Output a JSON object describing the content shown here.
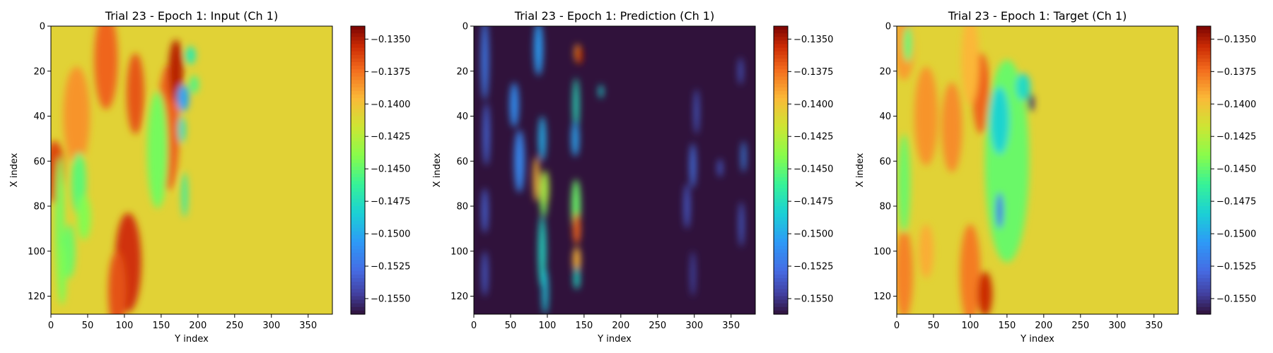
{
  "chart_data": [
    {
      "type": "heatmap",
      "title": "Trial 23 - Epoch 1: Input (Ch 1)",
      "xlabel": "Y index",
      "ylabel": "X index",
      "xlim": [
        0,
        383
      ],
      "ylim": [
        128,
        0
      ],
      "xticks": [
        "0",
        "50",
        "100",
        "150",
        "200",
        "250",
        "300",
        "350"
      ],
      "yticks": [
        "0",
        "20",
        "40",
        "60",
        "80",
        "100",
        "120"
      ],
      "colormap": "turbo",
      "colorbar_range": [
        -0.1562,
        -0.134
      ],
      "colorbar_ticks": [
        "−0.1350",
        "−0.1375",
        "−0.1400",
        "−0.1425",
        "−0.1450",
        "−0.1475",
        "−0.1500",
        "−0.1525",
        "−0.1550"
      ],
      "background_value": -0.1408,
      "features": [
        {
          "y": 5,
          "x": 65,
          "wy": 14,
          "wx": 14,
          "value": -0.1364
        },
        {
          "y": 35,
          "x": 40,
          "wy": 18,
          "wx": 22,
          "value": -0.1385
        },
        {
          "y": 75,
          "x": 15,
          "wy": 16,
          "wx": 22,
          "value": -0.1372
        },
        {
          "y": 115,
          "x": 30,
          "wy": 12,
          "wx": 18,
          "value": -0.1368
        },
        {
          "y": 105,
          "x": 105,
          "wy": 18,
          "wx": 22,
          "value": -0.1358
        },
        {
          "y": 90,
          "x": 118,
          "wy": 12,
          "wx": 18,
          "value": -0.1367
        },
        {
          "y": 160,
          "x": 45,
          "wy": 15,
          "wx": 28,
          "value": -0.1371
        },
        {
          "y": 170,
          "x": 20,
          "wy": 10,
          "wx": 14,
          "value": -0.1352
        },
        {
          "y": 12,
          "x": 88,
          "wy": 6,
          "wx": 30,
          "value": -0.1445
        },
        {
          "y": 38,
          "x": 70,
          "wy": 10,
          "wx": 14,
          "value": -0.1452
        },
        {
          "y": 25,
          "x": 100,
          "wy": 8,
          "wx": 12,
          "value": -0.1448
        },
        {
          "y": 15,
          "x": 110,
          "wy": 6,
          "wx": 14,
          "value": -0.1442
        },
        {
          "y": 45,
          "x": 85,
          "wy": 9,
          "wx": 10,
          "value": -0.1441
        },
        {
          "y": 145,
          "x": 55,
          "wy": 14,
          "wx": 26,
          "value": -0.1445
        },
        {
          "y": 190,
          "x": 13,
          "wy": 7,
          "wx": 4,
          "value": -0.1468
        },
        {
          "y": 195,
          "x": 26,
          "wy": 6,
          "wx": 4,
          "value": -0.1456
        },
        {
          "y": 180,
          "x": 32,
          "wy": 8,
          "wx": 6,
          "value": -0.1502
        },
        {
          "y": 178,
          "x": 46,
          "wy": 5,
          "wx": 6,
          "value": -0.1475
        },
        {
          "y": 182,
          "x": 75,
          "wy": 4,
          "wx": 10,
          "value": -0.1465
        }
      ]
    },
    {
      "type": "heatmap",
      "title": "Trial 23 - Epoch 1: Prediction (Ch 1)",
      "xlabel": "Y index",
      "ylabel": "X index",
      "xlim": [
        0,
        383
      ],
      "ylim": [
        128,
        0
      ],
      "xticks": [
        "0",
        "50",
        "100",
        "150",
        "200",
        "250",
        "300",
        "350"
      ],
      "yticks": [
        "0",
        "20",
        "40",
        "60",
        "80",
        "100",
        "120"
      ],
      "colormap": "turbo",
      "colorbar_range": [
        -0.1562,
        -0.134
      ],
      "colorbar_ticks": [
        "−0.1350",
        "−0.1375",
        "−0.1400",
        "−0.1425",
        "−0.1450",
        "−0.1475",
        "−0.1500",
        "−0.1525",
        "−0.1550"
      ],
      "background_value": -0.1562,
      "features": [
        {
          "y": 15,
          "x": 15,
          "wy": 5,
          "wx": 18,
          "value": -0.1522
        },
        {
          "y": 17,
          "x": 48,
          "wy": 4,
          "wx": 14,
          "value": -0.1528
        },
        {
          "y": 15,
          "x": 82,
          "wy": 4,
          "wx": 10,
          "value": -0.153
        },
        {
          "y": 15,
          "x": 110,
          "wy": 4,
          "wx": 10,
          "value": -0.1535
        },
        {
          "y": 55,
          "x": 35,
          "wy": 6,
          "wx": 10,
          "value": -0.1512
        },
        {
          "y": 62,
          "x": 60,
          "wy": 7,
          "wx": 14,
          "value": -0.1515
        },
        {
          "y": 88,
          "x": 10,
          "wy": 6,
          "wx": 12,
          "value": -0.1505
        },
        {
          "y": 93,
          "x": 50,
          "wy": 5,
          "wx": 10,
          "value": -0.1498
        },
        {
          "y": 95,
          "x": 75,
          "wy": 5,
          "wx": 10,
          "value": -0.1445
        },
        {
          "y": 93,
          "x": 100,
          "wy": 5,
          "wx": 16,
          "value": -0.1478
        },
        {
          "y": 97,
          "x": 118,
          "wy": 4,
          "wx": 10,
          "value": -0.1488
        },
        {
          "y": 85,
          "x": 68,
          "wy": 4,
          "wx": 10,
          "value": -0.1395
        },
        {
          "y": 97,
          "x": 72,
          "wy": 5,
          "wx": 8,
          "value": -0.1428
        },
        {
          "y": 139,
          "x": 35,
          "wy": 4,
          "wx": 12,
          "value": -0.1475
        },
        {
          "y": 138,
          "x": 50,
          "wy": 5,
          "wx": 8,
          "value": -0.1502
        },
        {
          "y": 141,
          "x": 12,
          "wy": 4,
          "wx": 4,
          "value": -0.1385
        },
        {
          "y": 144,
          "x": 13,
          "wy": 4,
          "wx": 4,
          "value": -0.1352
        },
        {
          "y": 139,
          "x": 80,
          "wy": 6,
          "wx": 12,
          "value": -0.1448
        },
        {
          "y": 140,
          "x": 90,
          "wy": 5,
          "wx": 7,
          "value": -0.1372
        },
        {
          "y": 140,
          "x": 104,
          "wy": 5,
          "wx": 6,
          "value": -0.1395
        },
        {
          "y": 140,
          "x": 112,
          "wy": 4,
          "wx": 5,
          "value": -0.1478
        },
        {
          "y": 173,
          "x": 29,
          "wy": 3,
          "wx": 3,
          "value": -0.1482
        },
        {
          "y": 303,
          "x": 38,
          "wy": 3,
          "wx": 10,
          "value": -0.1532
        },
        {
          "y": 298,
          "x": 62,
          "wy": 4,
          "wx": 10,
          "value": -0.1525
        },
        {
          "y": 290,
          "x": 80,
          "wy": 4,
          "wx": 10,
          "value": -0.1535
        },
        {
          "y": 298,
          "x": 110,
          "wy": 3,
          "wx": 10,
          "value": -0.154
        },
        {
          "y": 335,
          "x": 63,
          "wy": 3,
          "wx": 4,
          "value": -0.1532
        },
        {
          "y": 367,
          "x": 58,
          "wy": 3,
          "wx": 7,
          "value": -0.1515
        },
        {
          "y": 364,
          "x": 88,
          "wy": 3,
          "wx": 10,
          "value": -0.153
        },
        {
          "y": 363,
          "x": 20,
          "wy": 3,
          "wx": 6,
          "value": -0.1535
        }
      ]
    },
    {
      "type": "heatmap",
      "title": "Trial 23 - Epoch 1: Target (Ch 1)",
      "xlabel": "Y index",
      "ylabel": "X index",
      "xlim": [
        0,
        383
      ],
      "ylim": [
        128,
        0
      ],
      "xticks": [
        "0",
        "50",
        "100",
        "150",
        "200",
        "250",
        "300",
        "350"
      ],
      "yticks": [
        "0",
        "20",
        "40",
        "60",
        "80",
        "100",
        "120"
      ],
      "colormap": "turbo",
      "colorbar_range": [
        -0.1562,
        -0.134
      ],
      "colorbar_ticks": [
        "−0.1350",
        "−0.1375",
        "−0.1400",
        "−0.1425",
        "−0.1450",
        "−0.1475",
        "−0.1500",
        "−0.1525",
        "−0.1550"
      ],
      "background_value": -0.1408,
      "features": [
        {
          "y": 10,
          "x": 10,
          "wy": 14,
          "wx": 14,
          "value": -0.1388
        },
        {
          "y": 40,
          "x": 40,
          "wy": 16,
          "wx": 22,
          "value": -0.1385
        },
        {
          "y": 75,
          "x": 45,
          "wy": 14,
          "wx": 20,
          "value": -0.1383
        },
        {
          "y": 115,
          "x": 30,
          "wy": 12,
          "wx": 18,
          "value": -0.1372
        },
        {
          "y": 100,
          "x": 110,
          "wy": 14,
          "wx": 22,
          "value": -0.1378
        },
        {
          "y": 120,
          "x": 119,
          "wy": 10,
          "wx": 10,
          "value": -0.1356
        },
        {
          "y": 10,
          "x": 110,
          "wy": 12,
          "wx": 20,
          "value": -0.138
        },
        {
          "y": 100,
          "x": 15,
          "wy": 12,
          "wx": 20,
          "value": -0.1395
        },
        {
          "y": 40,
          "x": 100,
          "wy": 10,
          "wx": 12,
          "value": -0.1392
        },
        {
          "y": 150,
          "x": 60,
          "wy": 30,
          "wx": 45,
          "value": -0.1448
        },
        {
          "y": 140,
          "x": 42,
          "wy": 13,
          "wx": 15,
          "value": -0.1482
        },
        {
          "y": 172,
          "x": 27,
          "wy": 10,
          "wx": 6,
          "value": -0.1478
        },
        {
          "y": 183,
          "x": 34,
          "wy": 4,
          "wx": 4,
          "value": -0.1553
        },
        {
          "y": 140,
          "x": 82,
          "wy": 5,
          "wx": 8,
          "value": -0.1525
        },
        {
          "y": 10,
          "x": 70,
          "wy": 8,
          "wx": 22,
          "value": -0.1448
        },
        {
          "y": 15,
          "x": 8,
          "wy": 6,
          "wx": 8,
          "value": -0.1452
        }
      ]
    }
  ]
}
